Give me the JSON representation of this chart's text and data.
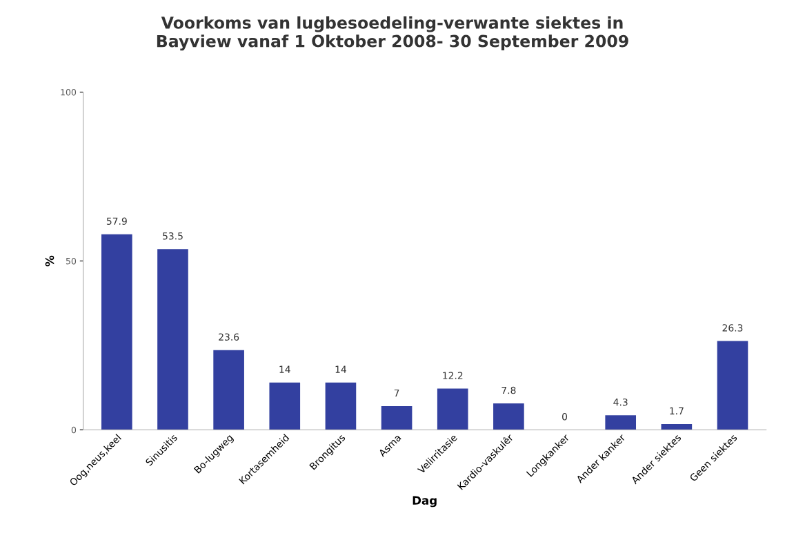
{
  "chart_data": {
    "type": "bar",
    "title": "Voorkoms van lugbesoedeling-verwante siektes in\nBayview vanaf 1 Oktober 2008- 30 September 2009",
    "xlabel": "Dag",
    "ylabel": "%",
    "categories": [
      "Oog,neus,keel",
      "Sinusitis",
      "Bo-lugweg",
      "Kortasemheid",
      "Brongitus",
      "Asma",
      "Velirritasie",
      "Kardio-vaskulêr",
      "Longkanker",
      "Ander kanker",
      "Ander siektes",
      "Geen siektes"
    ],
    "values": [
      57.9,
      53.5,
      23.6,
      14,
      14,
      7,
      12.2,
      7.8,
      0,
      4.3,
      1.7,
      26.3
    ],
    "color": "#3340a0",
    "ylim": [
      0,
      100
    ],
    "yticks": [
      0,
      50,
      100
    ],
    "data_labels": true,
    "grid": false,
    "legend": false
  }
}
